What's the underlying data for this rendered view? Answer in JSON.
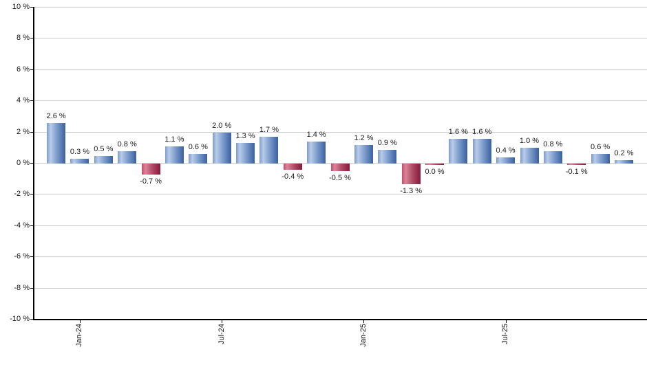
{
  "chart_data": {
    "type": "bar",
    "title": "",
    "xlabel": "",
    "ylabel": "",
    "ylim": [
      -10,
      10
    ],
    "grid": true,
    "legend_position": "none",
    "values": [
      2.6,
      0.3,
      0.5,
      0.8,
      -0.7,
      1.1,
      0.6,
      2.0,
      1.3,
      1.7,
      -0.4,
      1.4,
      -0.5,
      1.2,
      0.9,
      -1.3,
      0.0,
      1.6,
      1.6,
      0.4,
      1.0,
      0.8,
      -0.1,
      0.6,
      0.2
    ],
    "bar_labels": [
      "2.6 %",
      "0.3 %",
      "0.5 %",
      "0.8 %",
      "-0.7 %",
      "1.1 %",
      "0.6 %",
      "2.0 %",
      "1.3 %",
      "1.7 %",
      "-0.4 %",
      "1.4 %",
      "-0.5 %",
      "1.2 %",
      "0.9 %",
      "-1.3 %",
      "0.0 %",
      "1.6 %",
      "1.6 %",
      "0.4 %",
      "1.0 %",
      "0.8 %",
      "-0.1 %",
      "0.6 %",
      "0.2 %"
    ],
    "y_tick_labels": [
      "10 %",
      "8 %",
      "6 %",
      "4 %",
      "2 %",
      "0 %",
      "-2 %",
      "-4 %",
      "-6 %",
      "-8 %",
      "-10 %"
    ],
    "y_tick_values": [
      10,
      8,
      6,
      4,
      2,
      0,
      -2,
      -4,
      -6,
      -8,
      -10
    ],
    "x_ticks": [
      {
        "label": "Jan-24",
        "bar_index": 1
      },
      {
        "label": "Jul-24",
        "bar_index": 7
      },
      {
        "label": "Jan-25",
        "bar_index": 13
      },
      {
        "label": "Jul-25",
        "bar_index": 19
      }
    ],
    "colors": {
      "positive_gradient": [
        "#7e9cc9",
        "#b9cce9",
        "#7b9ccb",
        "#3a60a0"
      ],
      "negative_gradient": [
        "#c14f6b",
        "#dc8499",
        "#b14c68",
        "#861a3a"
      ],
      "gridline": "#cccccc",
      "axis": "#000000",
      "label_text": "#1b1b1b"
    }
  }
}
